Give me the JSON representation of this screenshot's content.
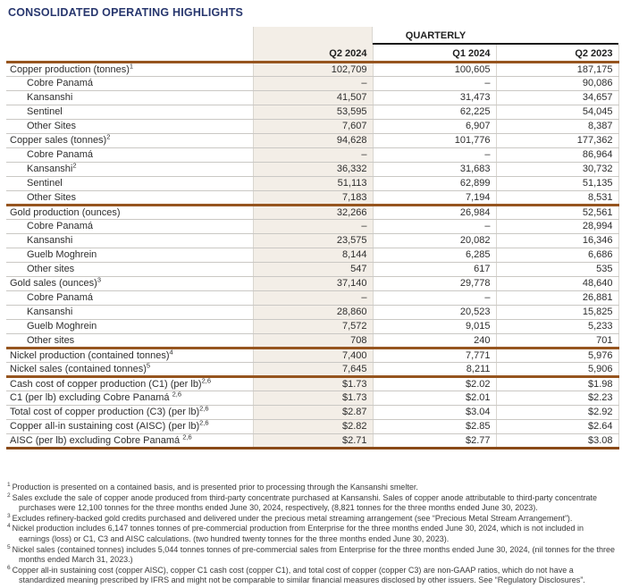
{
  "title": "CONSOLIDATED OPERATING HIGHLIGHTS",
  "table": {
    "group_header": "QUARTERLY",
    "columns": [
      "Q2 2024",
      "Q1 2024",
      "Q2 2023"
    ],
    "rows": [
      {
        "label": "Copper production (tonnes)",
        "sup": "1",
        "indent": false,
        "values": [
          "102,709",
          "100,605",
          "187,175"
        ],
        "rule": "gray"
      },
      {
        "label": "Cobre Panamá",
        "sup": "",
        "indent": true,
        "values": [
          "–",
          "–",
          "90,086"
        ],
        "rule": "gray"
      },
      {
        "label": "Kansanshi",
        "sup": "",
        "indent": true,
        "values": [
          "41,507",
          "31,473",
          "34,657"
        ],
        "rule": "gray"
      },
      {
        "label": "Sentinel",
        "sup": "",
        "indent": true,
        "values": [
          "53,595",
          "62,225",
          "54,045"
        ],
        "rule": "gray"
      },
      {
        "label": "Other Sites",
        "sup": "",
        "indent": true,
        "values": [
          "7,607",
          "6,907",
          "8,387"
        ],
        "rule": "gray"
      },
      {
        "label": "Copper sales (tonnes)",
        "sup": "2",
        "indent": false,
        "values": [
          "94,628",
          "101,776",
          "177,362"
        ],
        "rule": "gray"
      },
      {
        "label": "Cobre Panamá",
        "sup": "",
        "indent": true,
        "values": [
          "–",
          "–",
          "86,964"
        ],
        "rule": "gray"
      },
      {
        "label": "Kansanshi",
        "sup": "2",
        "indent": true,
        "values": [
          "36,332",
          "31,683",
          "30,732"
        ],
        "rule": "gray"
      },
      {
        "label": "Sentinel",
        "sup": "",
        "indent": true,
        "values": [
          "51,113",
          "62,899",
          "51,135"
        ],
        "rule": "gray"
      },
      {
        "label": "Other Sites",
        "sup": "",
        "indent": true,
        "values": [
          "7,183",
          "7,194",
          "8,531"
        ],
        "rule": "brown"
      },
      {
        "label": "Gold production (ounces)",
        "sup": "",
        "indent": false,
        "values": [
          "32,266",
          "26,984",
          "52,561"
        ],
        "rule": "gray"
      },
      {
        "label": "Cobre Panamá",
        "sup": "",
        "indent": true,
        "values": [
          "–",
          "–",
          "28,994"
        ],
        "rule": "gray"
      },
      {
        "label": "Kansanshi",
        "sup": "",
        "indent": true,
        "values": [
          "23,575",
          "20,082",
          "16,346"
        ],
        "rule": "gray"
      },
      {
        "label": "Guelb Moghrein",
        "sup": "",
        "indent": true,
        "values": [
          "8,144",
          "6,285",
          "6,686"
        ],
        "rule": "gray"
      },
      {
        "label": "Other sites",
        "sup": "",
        "indent": true,
        "values": [
          "547",
          "617",
          "535"
        ],
        "rule": "gray"
      },
      {
        "label": "Gold sales (ounces)",
        "sup": "3",
        "indent": false,
        "values": [
          "37,140",
          "29,778",
          "48,640"
        ],
        "rule": "gray"
      },
      {
        "label": "Cobre Panamá",
        "sup": "",
        "indent": true,
        "values": [
          "–",
          "–",
          "26,881"
        ],
        "rule": "gray"
      },
      {
        "label": "Kansanshi",
        "sup": "",
        "indent": true,
        "values": [
          "28,860",
          "20,523",
          "15,825"
        ],
        "rule": "gray"
      },
      {
        "label": "Guelb Moghrein",
        "sup": "",
        "indent": true,
        "values": [
          "7,572",
          "9,015",
          "5,233"
        ],
        "rule": "gray"
      },
      {
        "label": "Other sites",
        "sup": "",
        "indent": true,
        "values": [
          "708",
          "240",
          "701"
        ],
        "rule": "brown"
      },
      {
        "label": "Nickel production (contained tonnes)",
        "sup": "4",
        "indent": false,
        "values": [
          "7,400",
          "7,771",
          "5,976"
        ],
        "rule": "gray"
      },
      {
        "label": "Nickel sales (contained tonnes)",
        "sup": "5",
        "indent": false,
        "values": [
          "7,645",
          "8,211",
          "5,906"
        ],
        "rule": "brown"
      },
      {
        "label": "Cash cost of copper production (C1) (per lb)",
        "sup": "2,6",
        "indent": false,
        "values": [
          "$1.73",
          "$2.02",
          "$1.98"
        ],
        "rule": "gray"
      },
      {
        "label": "C1 (per lb) excluding Cobre Panamá ",
        "sup": "2,6",
        "indent": false,
        "values": [
          "$1.73",
          "$2.01",
          "$2.23"
        ],
        "rule": "gray"
      },
      {
        "label": "Total cost of copper production (C3) (per lb)",
        "sup": "2,6",
        "indent": false,
        "values": [
          "$2.87",
          "$3.04",
          "$2.92"
        ],
        "rule": "gray"
      },
      {
        "label": "Copper all-in sustaining cost (AISC) (per lb)",
        "sup": "2,6",
        "indent": false,
        "values": [
          "$2.82",
          "$2.85",
          "$2.64"
        ],
        "rule": "gray"
      },
      {
        "label": "AISC (per lb) excluding Cobre Panamá ",
        "sup": "2,6",
        "indent": false,
        "values": [
          "$2.71",
          "$2.77",
          "$3.08"
        ],
        "rule": "brown-thick"
      }
    ]
  },
  "footnotes": [
    {
      "num": "1",
      "text": "Production is presented on a contained basis, and is presented prior to processing through the Kansanshi smelter."
    },
    {
      "num": "2",
      "text": "Sales exclude the sale of copper anode produced from third-party concentrate purchased at Kansanshi. Sales of copper anode attributable to third-party concentrate purchases were 12,100 tonnes for the three months ended June 30, 2024, respectively, (8,821 tonnes for the three months ended June 30, 2023)."
    },
    {
      "num": "3",
      "text": "Excludes refinery-backed gold credits purchased and delivered under the precious metal streaming arrangement (see “Precious Metal Stream Arrangement”)."
    },
    {
      "num": "4",
      "text": "Nickel production includes 6,147 tonnes tonnes of pre-commercial production from Enterprise for the three months ended June 30, 2024, which is not included in earnings (loss) or C1, C3 and AISC calculations. (two hundred twenty tonnes for the three months ended June 30, 2023)."
    },
    {
      "num": "5",
      "text": "Nickel sales (contained tonnes) includes 5,044 tonnes tonnes of pre-commercial sales from Enterprise for the three months ended June 30, 2024,  (nil tonnes for the three months ended March 31, 2023.)"
    },
    {
      "num": "6",
      "text": "Copper all-in sustaining cost (copper AISC), copper C1 cash cost (copper C1), and total cost of copper (copper C3) are non-GAAP ratios, which do not have a standardized meaning prescribed by IFRS and might not be comparable to similar financial measures disclosed by other issuers. See “Regulatory Disclosures”."
    }
  ],
  "colors": {
    "title_navy": "#28376e",
    "section_rule_brown": "#96551f",
    "bottom_rule_brown": "#8a4a18",
    "highlight_column_beige": "#f3eee7",
    "row_line_gray": "#cac8c4",
    "quarterly_underline_black": "#1a1a1a"
  }
}
